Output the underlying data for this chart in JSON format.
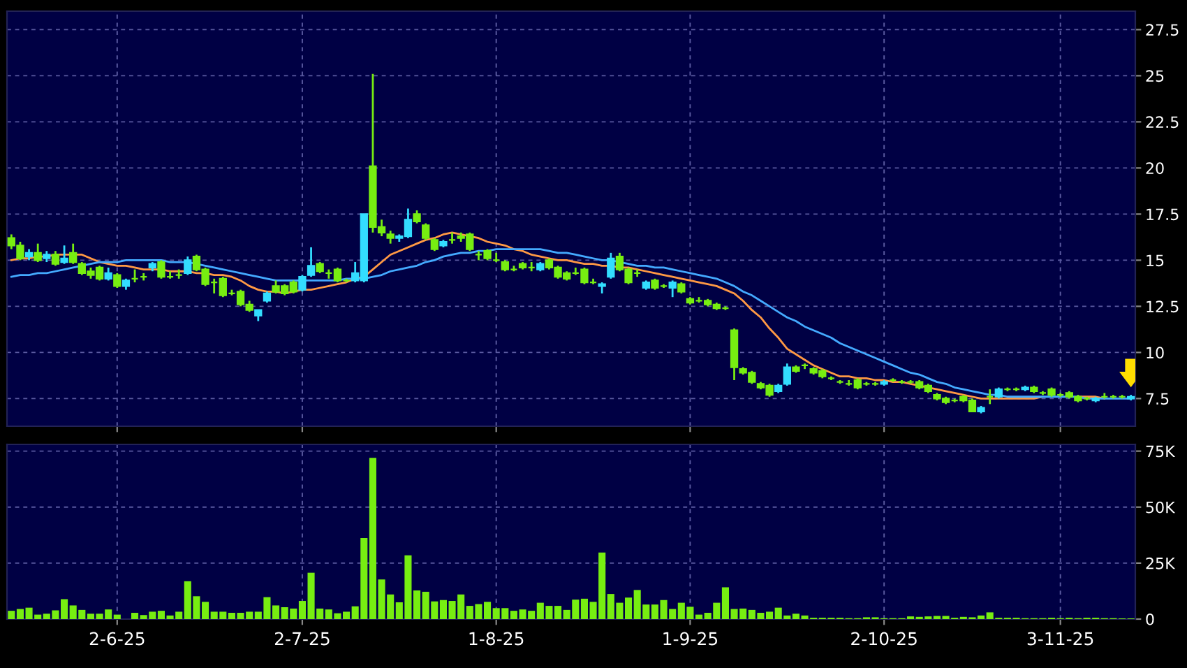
{
  "chart_data": [
    {
      "type": "candlestick",
      "tick_labels": "y",
      "grid": true,
      "legend": false,
      "categories": [
        null,
        null,
        null,
        null,
        null,
        null,
        null,
        null,
        null,
        null,
        null,
        null,
        null,
        null,
        null,
        null,
        null,
        null,
        null,
        null,
        null,
        null,
        null,
        null,
        null,
        null,
        null,
        null,
        null,
        null,
        null,
        null,
        null,
        null,
        null,
        null,
        null,
        null,
        null,
        null,
        null,
        null,
        null,
        null,
        null,
        null,
        null,
        null,
        null,
        null,
        null,
        null,
        null,
        null,
        null,
        null,
        null,
        null,
        null,
        null,
        null,
        null,
        null,
        null,
        null,
        null,
        null,
        null,
        null,
        null,
        null,
        null,
        null,
        null,
        null,
        null,
        null,
        null,
        null,
        null,
        null,
        null,
        null,
        null,
        null,
        null,
        null,
        null,
        null,
        null,
        null,
        null,
        null,
        null,
        null,
        null,
        null,
        null,
        null,
        null,
        null,
        null,
        null,
        null,
        null,
        null,
        null,
        null,
        null,
        null,
        null,
        null,
        null,
        null,
        null,
        null,
        null,
        null,
        null,
        null,
        null,
        null,
        null,
        null,
        null,
        null,
        null,
        null
      ],
      "ylim": [
        6.0,
        28.5
      ],
      "yticks": [
        7.5,
        10,
        12.5,
        15,
        17.5,
        20,
        22.5,
        25,
        27.5
      ],
      "series": [
        {
          "type": "line",
          "color": "#ff9944",
          "values": [
            15.0,
            15.1,
            15.1,
            15.2,
            15.2,
            15.3,
            15.3,
            15.3,
            15.3,
            15.1,
            14.9,
            14.8,
            14.7,
            14.7,
            14.6,
            14.5,
            14.5,
            14.5,
            14.4,
            14.4,
            14.4,
            14.3,
            14.3,
            14.2,
            14.2,
            14.1,
            13.9,
            13.6,
            13.4,
            13.3,
            13.3,
            13.2,
            13.3,
            13.4,
            13.4,
            13.5,
            13.6,
            13.7,
            13.8,
            14.0,
            14.1,
            14.5,
            14.9,
            15.3,
            15.5,
            15.7,
            15.9,
            16.1,
            16.2,
            16.4,
            16.5,
            16.4,
            16.3,
            16.2,
            16.0,
            15.9,
            15.8,
            15.6,
            15.5,
            15.3,
            15.2,
            15.1,
            15.0,
            15.0,
            14.9,
            14.8,
            14.8,
            14.7,
            14.7,
            14.6,
            14.6,
            14.5,
            14.4,
            14.3,
            14.2,
            14.1,
            14.0,
            13.9,
            13.8,
            13.7,
            13.6,
            13.4,
            13.2,
            12.8,
            12.3,
            11.9,
            11.3,
            10.8,
            10.2,
            9.9,
            9.6,
            9.3,
            9.1,
            8.9,
            8.7,
            8.7,
            8.6,
            8.6,
            8.5,
            8.5,
            8.4,
            8.4,
            8.3,
            8.2,
            8.1,
            8.0,
            7.9,
            7.8,
            7.7,
            7.6,
            7.5,
            7.5,
            7.5,
            7.5,
            7.5,
            7.5,
            7.5,
            7.6,
            null,
            null,
            null,
            7.6,
            7.6,
            7.6,
            7.5,
            null,
            null,
            null
          ]
        },
        {
          "type": "line",
          "color": "#44aaff",
          "values": [
            14.1,
            14.2,
            14.2,
            14.3,
            14.3,
            14.4,
            14.5,
            14.6,
            14.7,
            14.8,
            14.9,
            14.9,
            14.9,
            15.0,
            15.0,
            15.0,
            15.0,
            15.0,
            14.9,
            14.9,
            14.9,
            14.8,
            14.7,
            14.6,
            14.5,
            14.4,
            14.3,
            14.2,
            14.1,
            14.0,
            13.9,
            13.9,
            13.9,
            13.9,
            13.9,
            13.9,
            13.9,
            13.9,
            14.0,
            14.0,
            14.0,
            14.1,
            14.2,
            14.4,
            14.5,
            14.6,
            14.7,
            14.9,
            15.0,
            15.2,
            15.3,
            15.4,
            15.4,
            15.5,
            15.5,
            15.6,
            15.6,
            15.6,
            15.6,
            15.6,
            15.6,
            15.5,
            15.4,
            15.4,
            15.3,
            15.2,
            15.1,
            15.0,
            15.0,
            14.9,
            14.8,
            14.7,
            14.7,
            14.6,
            14.6,
            14.5,
            14.4,
            14.3,
            14.2,
            14.1,
            14.0,
            13.8,
            13.6,
            13.3,
            13.1,
            12.8,
            12.5,
            12.2,
            11.9,
            11.7,
            11.4,
            11.2,
            11.0,
            10.8,
            10.5,
            10.3,
            10.1,
            9.9,
            9.7,
            9.5,
            9.3,
            9.1,
            8.9,
            8.8,
            8.6,
            8.4,
            8.3,
            8.1,
            8.0,
            7.9,
            7.8,
            7.7,
            7.7,
            7.6,
            7.6,
            7.6,
            7.6,
            7.6,
            7.6,
            7.6,
            7.6,
            7.6,
            7.5,
            7.5,
            7.5,
            7.5,
            7.5,
            7.5
          ]
        },
        {
          "type": "candlestick",
          "ohlc": [
            [
              16.2,
              16.4,
              15.6,
              15.8
            ],
            [
              15.8,
              16.0,
              15.0,
              15.1
            ],
            [
              15.2,
              15.6,
              15.0,
              15.4
            ],
            [
              15.4,
              15.9,
              14.9,
              15.0
            ],
            [
              15.1,
              15.5,
              14.9,
              15.3
            ],
            [
              15.3,
              15.5,
              14.7,
              14.8
            ],
            [
              14.9,
              15.8,
              14.8,
              15.1
            ],
            [
              15.4,
              15.9,
              14.8,
              14.9
            ],
            [
              14.8,
              14.9,
              14.2,
              14.3
            ],
            [
              14.4,
              14.6,
              14.0,
              14.2
            ],
            [
              14.6,
              14.7,
              13.9,
              14.0
            ],
            [
              14.0,
              14.6,
              13.9,
              14.3
            ],
            [
              14.2,
              14.3,
              13.5,
              13.6
            ],
            [
              13.6,
              14.0,
              13.4,
              13.9
            ],
            [
              14.0,
              14.5,
              13.8,
              14.0
            ],
            [
              14.1,
              14.3,
              13.9,
              14.1
            ],
            [
              14.6,
              14.9,
              14.4,
              14.8
            ],
            [
              14.9,
              15.0,
              14.0,
              14.1
            ],
            [
              14.1,
              14.4,
              14.0,
              14.1
            ],
            [
              14.2,
              14.5,
              14.0,
              14.2
            ],
            [
              14.3,
              15.2,
              14.2,
              15.0
            ],
            [
              15.2,
              15.3,
              14.4,
              14.5
            ],
            [
              14.5,
              14.6,
              13.6,
              13.7
            ],
            [
              13.8,
              14.0,
              13.2,
              13.8
            ],
            [
              14.0,
              14.1,
              13.0,
              13.1
            ],
            [
              13.2,
              13.4,
              13.1,
              13.2
            ],
            [
              13.3,
              13.4,
              12.5,
              12.6
            ],
            [
              12.6,
              12.8,
              12.2,
              12.3
            ],
            [
              12.0,
              12.3,
              11.7,
              12.3
            ],
            [
              12.8,
              13.3,
              12.7,
              13.2
            ],
            [
              13.6,
              13.9,
              13.2,
              13.3
            ],
            [
              13.6,
              13.7,
              13.1,
              13.2
            ],
            [
              13.8,
              13.9,
              13.2,
              13.3
            ],
            [
              13.4,
              14.2,
              13.3,
              14.1
            ],
            [
              14.2,
              15.7,
              14.1,
              14.7
            ],
            [
              14.8,
              14.9,
              14.3,
              14.4
            ],
            [
              14.3,
              14.5,
              14.0,
              14.3
            ],
            [
              14.5,
              14.6,
              13.8,
              13.9
            ],
            [
              13.9,
              14.0,
              13.8,
              13.9
            ],
            [
              13.9,
              14.9,
              13.8,
              14.3
            ],
            [
              13.9,
              17.5,
              13.8,
              17.5
            ],
            [
              20.1,
              25.1,
              16.5,
              16.8
            ],
            [
              16.8,
              17.2,
              16.3,
              16.5
            ],
            [
              16.4,
              16.6,
              15.9,
              16.2
            ],
            [
              16.2,
              16.4,
              16.0,
              16.3
            ],
            [
              16.3,
              17.8,
              16.2,
              17.2
            ],
            [
              17.5,
              17.7,
              17.0,
              17.1
            ],
            [
              16.9,
              17.0,
              16.1,
              16.2
            ],
            [
              16.1,
              16.2,
              15.5,
              15.6
            ],
            [
              15.8,
              16.1,
              15.7,
              16.0
            ],
            [
              16.1,
              16.5,
              15.9,
              16.1
            ],
            [
              16.3,
              16.5,
              16.0,
              16.2
            ],
            [
              16.4,
              16.5,
              15.5,
              15.6
            ],
            [
              15.3,
              15.5,
              15.0,
              15.3
            ],
            [
              15.5,
              15.6,
              15.0,
              15.1
            ],
            [
              15.0,
              15.4,
              14.9,
              15.0
            ],
            [
              14.9,
              15.0,
              14.4,
              14.5
            ],
            [
              14.5,
              14.7,
              14.4,
              14.5
            ],
            [
              14.8,
              14.9,
              14.5,
              14.6
            ],
            [
              14.6,
              14.9,
              14.4,
              14.6
            ],
            [
              14.5,
              14.9,
              14.4,
              14.8
            ],
            [
              15.0,
              15.1,
              14.5,
              14.6
            ],
            [
              14.6,
              14.7,
              14.0,
              14.1
            ],
            [
              14.3,
              14.4,
              13.9,
              14.0
            ],
            [
              14.3,
              14.6,
              14.2,
              14.3
            ],
            [
              14.5,
              14.6,
              13.7,
              13.8
            ],
            [
              13.8,
              14.0,
              13.7,
              13.8
            ],
            [
              13.6,
              13.8,
              13.2,
              13.7
            ],
            [
              14.1,
              15.4,
              14.0,
              15.1
            ],
            [
              15.2,
              15.4,
              14.4,
              14.5
            ],
            [
              14.5,
              14.6,
              13.7,
              13.8
            ],
            [
              14.3,
              14.5,
              14.1,
              14.3
            ],
            [
              13.5,
              13.9,
              13.4,
              13.8
            ],
            [
              13.9,
              14.0,
              13.4,
              13.5
            ],
            [
              13.6,
              13.7,
              13.5,
              13.6
            ],
            [
              13.5,
              13.9,
              13.0,
              13.8
            ],
            [
              13.7,
              13.8,
              13.2,
              13.3
            ],
            [
              12.9,
              13.0,
              12.6,
              12.7
            ],
            [
              12.8,
              13.0,
              12.7,
              12.8
            ],
            [
              12.8,
              12.9,
              12.5,
              12.6
            ],
            [
              12.6,
              12.7,
              12.3,
              12.4
            ],
            [
              12.4,
              12.5,
              12.3,
              12.4
            ],
            [
              11.2,
              11.3,
              8.5,
              9.2
            ],
            [
              9.1,
              9.2,
              8.8,
              8.9
            ],
            [
              8.9,
              9.0,
              8.3,
              8.4
            ],
            [
              8.3,
              8.4,
              8.0,
              8.1
            ],
            [
              8.2,
              8.3,
              7.6,
              7.7
            ],
            [
              7.9,
              8.3,
              7.8,
              8.2
            ],
            [
              8.3,
              9.4,
              8.2,
              9.2
            ],
            [
              9.2,
              9.3,
              8.9,
              9.0
            ],
            [
              9.3,
              9.4,
              9.1,
              9.3
            ],
            [
              9.1,
              9.2,
              8.8,
              8.9
            ],
            [
              9.0,
              9.1,
              8.6,
              8.7
            ],
            [
              8.6,
              8.7,
              8.5,
              8.6
            ],
            [
              8.4,
              8.5,
              8.3,
              8.4
            ],
            [
              8.3,
              8.5,
              8.2,
              8.3
            ],
            [
              8.5,
              8.6,
              8.0,
              8.1
            ],
            [
              8.3,
              8.4,
              8.2,
              8.3
            ],
            [
              8.3,
              8.4,
              8.2,
              8.3
            ],
            [
              8.3,
              8.5,
              8.2,
              8.4
            ],
            [
              8.5,
              8.6,
              8.4,
              8.5
            ],
            [
              8.4,
              8.5,
              8.3,
              8.4
            ],
            [
              8.4,
              8.5,
              8.3,
              8.4
            ],
            [
              8.4,
              8.5,
              8.0,
              8.1
            ],
            [
              8.2,
              8.3,
              7.8,
              7.9
            ],
            [
              7.7,
              7.8,
              7.4,
              7.5
            ],
            [
              7.5,
              7.6,
              7.2,
              7.3
            ],
            [
              7.4,
              7.5,
              7.3,
              7.4
            ],
            [
              7.6,
              7.7,
              7.3,
              7.4
            ],
            [
              7.4,
              7.5,
              6.8,
              6.8
            ],
            [
              6.8,
              7.1,
              6.7,
              7.0
            ],
            [
              7.6,
              8.0,
              7.2,
              7.6
            ],
            [
              7.6,
              8.1,
              7.5,
              8.0
            ],
            [
              8.0,
              8.1,
              7.9,
              8.0
            ],
            [
              8.0,
              8.1,
              7.9,
              8.0
            ],
            [
              8.0,
              8.2,
              7.9,
              8.1
            ],
            [
              8.1,
              8.2,
              7.8,
              7.9
            ],
            [
              7.8,
              7.9,
              7.7,
              7.8
            ],
            [
              8.0,
              8.1,
              7.6,
              7.7
            ],
            [
              7.7,
              7.8,
              7.6,
              7.7
            ],
            [
              7.8,
              7.9,
              7.5,
              7.6
            ],
            [
              7.6,
              7.7,
              7.3,
              7.4
            ],
            [
              7.5,
              7.6,
              7.4,
              7.5
            ],
            [
              7.4,
              7.6,
              7.3,
              7.5
            ],
            [
              7.6,
              7.8,
              7.5,
              7.6
            ],
            [
              7.6,
              7.7,
              7.5,
              7.6
            ],
            [
              7.6,
              7.7,
              7.5,
              7.6
            ],
            [
              7.5,
              7.7,
              7.4,
              7.6
            ]
          ],
          "colors": [
            "#77ee11",
            "#77ee11",
            "#33ddff",
            "#77ee11",
            "#33ddff",
            "#77ee11",
            "#33ddff",
            "#77ee11",
            "#77ee11",
            "#77ee11",
            "#77ee11",
            "#33ddff",
            "#77ee11",
            "#33ddff",
            "#77ee11",
            "#77ee11",
            "#33ddff",
            "#77ee11",
            "#77ee11",
            "#77ee11",
            "#33ddff",
            "#77ee11",
            "#77ee11",
            "#77ee11",
            "#77ee11",
            "#77ee11",
            "#77ee11",
            "#77ee11",
            "#33ddff",
            "#33ddff",
            "#77ee11",
            "#77ee11",
            "#77ee11",
            "#33ddff",
            "#33ddff",
            "#77ee11",
            "#77ee11",
            "#77ee11",
            "#77ee11",
            "#33ddff",
            "#33ddff",
            "#77ee11",
            "#77ee11",
            "#77ee11",
            "#33ddff",
            "#33ddff",
            "#77ee11",
            "#77ee11",
            "#77ee11",
            "#33ddff",
            "#77ee11",
            "#77ee11",
            "#77ee11",
            "#77ee11",
            "#77ee11",
            "#77ee11",
            "#77ee11",
            "#77ee11",
            "#77ee11",
            "#77ee11",
            "#33ddff",
            "#77ee11",
            "#77ee11",
            "#77ee11",
            "#77ee11",
            "#77ee11",
            "#77ee11",
            "#33ddff",
            "#33ddff",
            "#77ee11",
            "#77ee11",
            "#77ee11",
            "#33ddff",
            "#77ee11",
            "#77ee11",
            "#33ddff",
            "#77ee11",
            "#77ee11",
            "#77ee11",
            "#77ee11",
            "#77ee11",
            "#77ee11",
            "#77ee11",
            "#77ee11",
            "#77ee11",
            "#77ee11",
            "#77ee11",
            "#33ddff",
            "#33ddff",
            "#77ee11",
            "#77ee11",
            "#77ee11",
            "#77ee11",
            "#77ee11",
            "#77ee11",
            "#77ee11",
            "#77ee11",
            "#77ee11",
            "#77ee11",
            "#33ddff",
            "#77ee11",
            "#77ee11",
            "#77ee11",
            "#77ee11",
            "#77ee11",
            "#77ee11",
            "#77ee11",
            "#77ee11",
            "#77ee11",
            "#77ee11",
            "#33ddff",
            "#77ee11",
            "#33ddff",
            "#77ee11",
            "#77ee11",
            "#33ddff",
            "#77ee11",
            "#77ee11",
            "#77ee11",
            "#77ee11",
            "#77ee11",
            "#77ee11",
            "#77ee11",
            "#33ddff",
            "#77ee11",
            "#77ee11",
            "#77ee11",
            "#33ddff"
          ]
        }
      ]
    },
    {
      "type": "bar",
      "grid": true,
      "legend": false,
      "color": "#77ee11",
      "categories": [
        null,
        null,
        null,
        null,
        null,
        null,
        null,
        null,
        null,
        null,
        null,
        null,
        "2-6-25",
        null,
        null,
        null,
        null,
        null,
        null,
        null,
        null,
        null,
        null,
        null,
        null,
        null,
        null,
        null,
        null,
        null,
        null,
        null,
        null,
        "2-7-25",
        null,
        null,
        null,
        null,
        null,
        null,
        null,
        null,
        null,
        null,
        null,
        null,
        null,
        null,
        null,
        null,
        null,
        null,
        null,
        null,
        null,
        "1-8-25",
        null,
        null,
        null,
        null,
        null,
        null,
        null,
        null,
        null,
        null,
        null,
        null,
        null,
        null,
        null,
        null,
        null,
        null,
        null,
        null,
        null,
        "1-9-25",
        null,
        null,
        null,
        null,
        null,
        null,
        null,
        null,
        null,
        null,
        null,
        null,
        null,
        null,
        null,
        null,
        null,
        null,
        null,
        null,
        null,
        "2-10-25",
        null,
        null,
        null,
        null,
        null,
        null,
        null,
        null,
        null,
        null,
        null,
        null,
        null,
        null,
        null,
        null,
        null,
        null,
        null,
        "3-11-25",
        null,
        null,
        null,
        null,
        null,
        null,
        null,
        null
      ],
      "ylim": [
        0,
        78000
      ],
      "yticks": [
        0,
        {
          "value": 25000,
          "label": "25K"
        },
        {
          "value": 50000,
          "label": "50K"
        },
        {
          "value": 75000,
          "label": "75K"
        }
      ],
      "values": [
        3700,
        4500,
        5100,
        2000,
        2400,
        3900,
        8900,
        6100,
        4100,
        2400,
        2400,
        4300,
        2000,
        0,
        2800,
        1800,
        3300,
        3700,
        1600,
        3300,
        16900,
        10200,
        7700,
        3300,
        3300,
        2800,
        2800,
        3300,
        3300,
        9800,
        6100,
        5300,
        4700,
        8100,
        20700,
        4700,
        4300,
        2600,
        3300,
        5700,
        36200,
        72000,
        17700,
        11000,
        7500,
        28500,
        12800,
        12200,
        7900,
        8500,
        8100,
        11000,
        5900,
        6700,
        7700,
        4900,
        4900,
        3700,
        4300,
        3700,
        7300,
        5900,
        5900,
        4100,
        8700,
        9100,
        7700,
        29700,
        11200,
        7300,
        9600,
        13000,
        6500,
        6500,
        8500,
        4500,
        7300,
        5500,
        2000,
        2800,
        7300,
        14200,
        4500,
        4700,
        4100,
        2800,
        3300,
        5100,
        1600,
        2400,
        1600,
        600,
        600,
        600,
        600,
        400,
        400,
        800,
        800,
        400,
        400,
        400,
        1200,
        1000,
        1200,
        1400,
        1400,
        600,
        1000,
        800,
        1600,
        3000,
        600,
        600,
        600,
        400,
        400,
        400,
        600,
        400,
        600,
        400,
        600,
        600,
        400,
        400,
        300,
        300
      ]
    }
  ]
}
